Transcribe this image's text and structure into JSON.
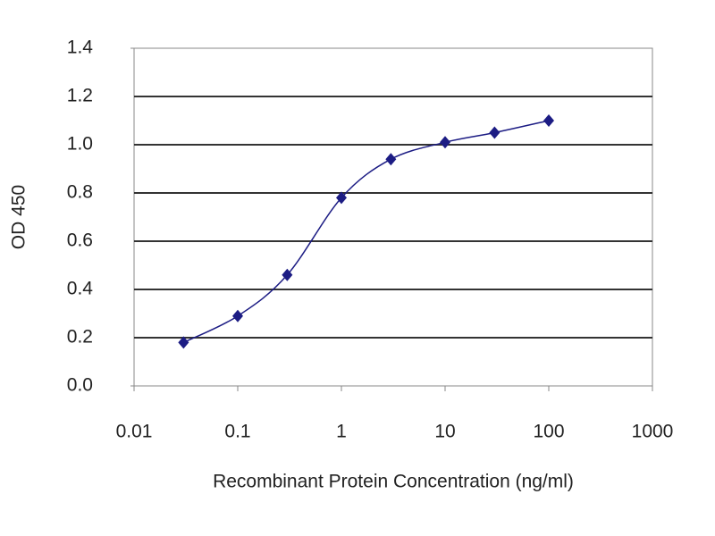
{
  "chart_data": {
    "type": "line",
    "xlabel": "Recombinant Protein Concentration (ng/ml)",
    "ylabel": "OD 450",
    "x": [
      0.03,
      0.1,
      0.3,
      1,
      3,
      10,
      30,
      100
    ],
    "series": [
      {
        "color": "#1c1c84",
        "values": [
          0.18,
          0.29,
          0.46,
          0.78,
          0.94,
          1.01,
          1.05,
          1.1
        ]
      }
    ],
    "xscale": "log",
    "xlim": [
      0.01,
      1000
    ],
    "xticks": [
      0.01,
      0.1,
      1,
      10,
      100,
      1000
    ],
    "ylim": [
      0,
      1.4
    ],
    "yticks": [
      {
        "value": 0,
        "label": "0.0"
      },
      0.2,
      0.4,
      0.6,
      0.8,
      {
        "value": 1,
        "label": "1.0"
      },
      1.2,
      1.4
    ],
    "grid": true
  }
}
